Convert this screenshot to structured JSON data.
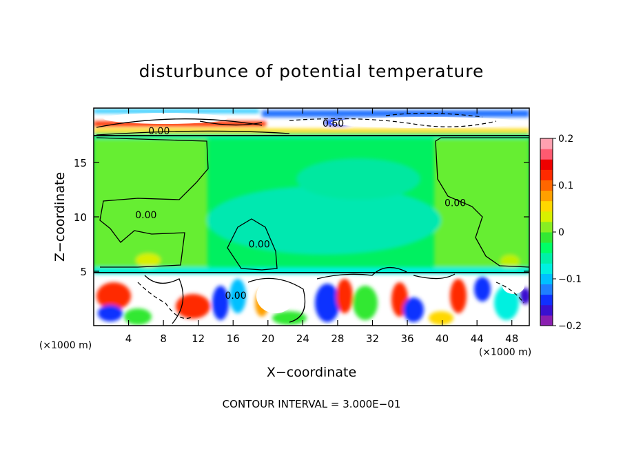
{
  "chart_data": {
    "type": "heatmap",
    "title": "disturbunce of potential temperature",
    "xlabel": "X−coordinate",
    "ylabel": "Z−coordinate",
    "x_unit_left": "(×1000 m)",
    "x_unit_right": "(×1000 m)",
    "xlim": [
      0,
      50
    ],
    "ylim": [
      0,
      20
    ],
    "x_ticks": [
      4,
      8,
      12,
      16,
      20,
      24,
      28,
      32,
      36,
      40,
      44,
      48
    ],
    "y_ticks": [
      5,
      10,
      15
    ],
    "x_tick_labels": [
      "4",
      "8",
      "12",
      "16",
      "20",
      "24",
      "28",
      "32",
      "36",
      "40",
      "44",
      "48"
    ],
    "y_tick_labels": [
      "5",
      "10",
      "15"
    ],
    "footer": "CONTOUR INTERVAL = 3.000E−01",
    "colorbar": {
      "range": [
        -0.2,
        0.2
      ],
      "ticks": [
        0.2,
        0.1,
        0,
        -0.1,
        -0.2
      ],
      "tick_labels": [
        "0.2",
        "0.1",
        "0",
        "−0.1",
        "−0.2"
      ],
      "colors": [
        "#8a1fb0",
        "#3a10d0",
        "#1030ff",
        "#1f7fff",
        "#00c0ff",
        "#00f0e0",
        "#00f0a8",
        "#00ff66",
        "#33e833",
        "#88ee22",
        "#d8f000",
        "#ffd800",
        "#ffa000",
        "#ff6600",
        "#ff2a00",
        "#ee0000",
        "#ff5a70",
        "#ffa0b0"
      ]
    },
    "contour_labels": [
      {
        "text": "0.60",
        "x": 27.5,
        "y": 18.6
      },
      {
        "text": "0.00",
        "x": 7.5,
        "y": 17.9
      },
      {
        "text": "0.00",
        "x": 6.0,
        "y": 10.2
      },
      {
        "text": "0.00",
        "x": 19.0,
        "y": 7.5
      },
      {
        "text": "0.00",
        "x": 41.5,
        "y": 11.3
      },
      {
        "text": "0.00",
        "x": 16.3,
        "y": 2.8
      }
    ]
  }
}
